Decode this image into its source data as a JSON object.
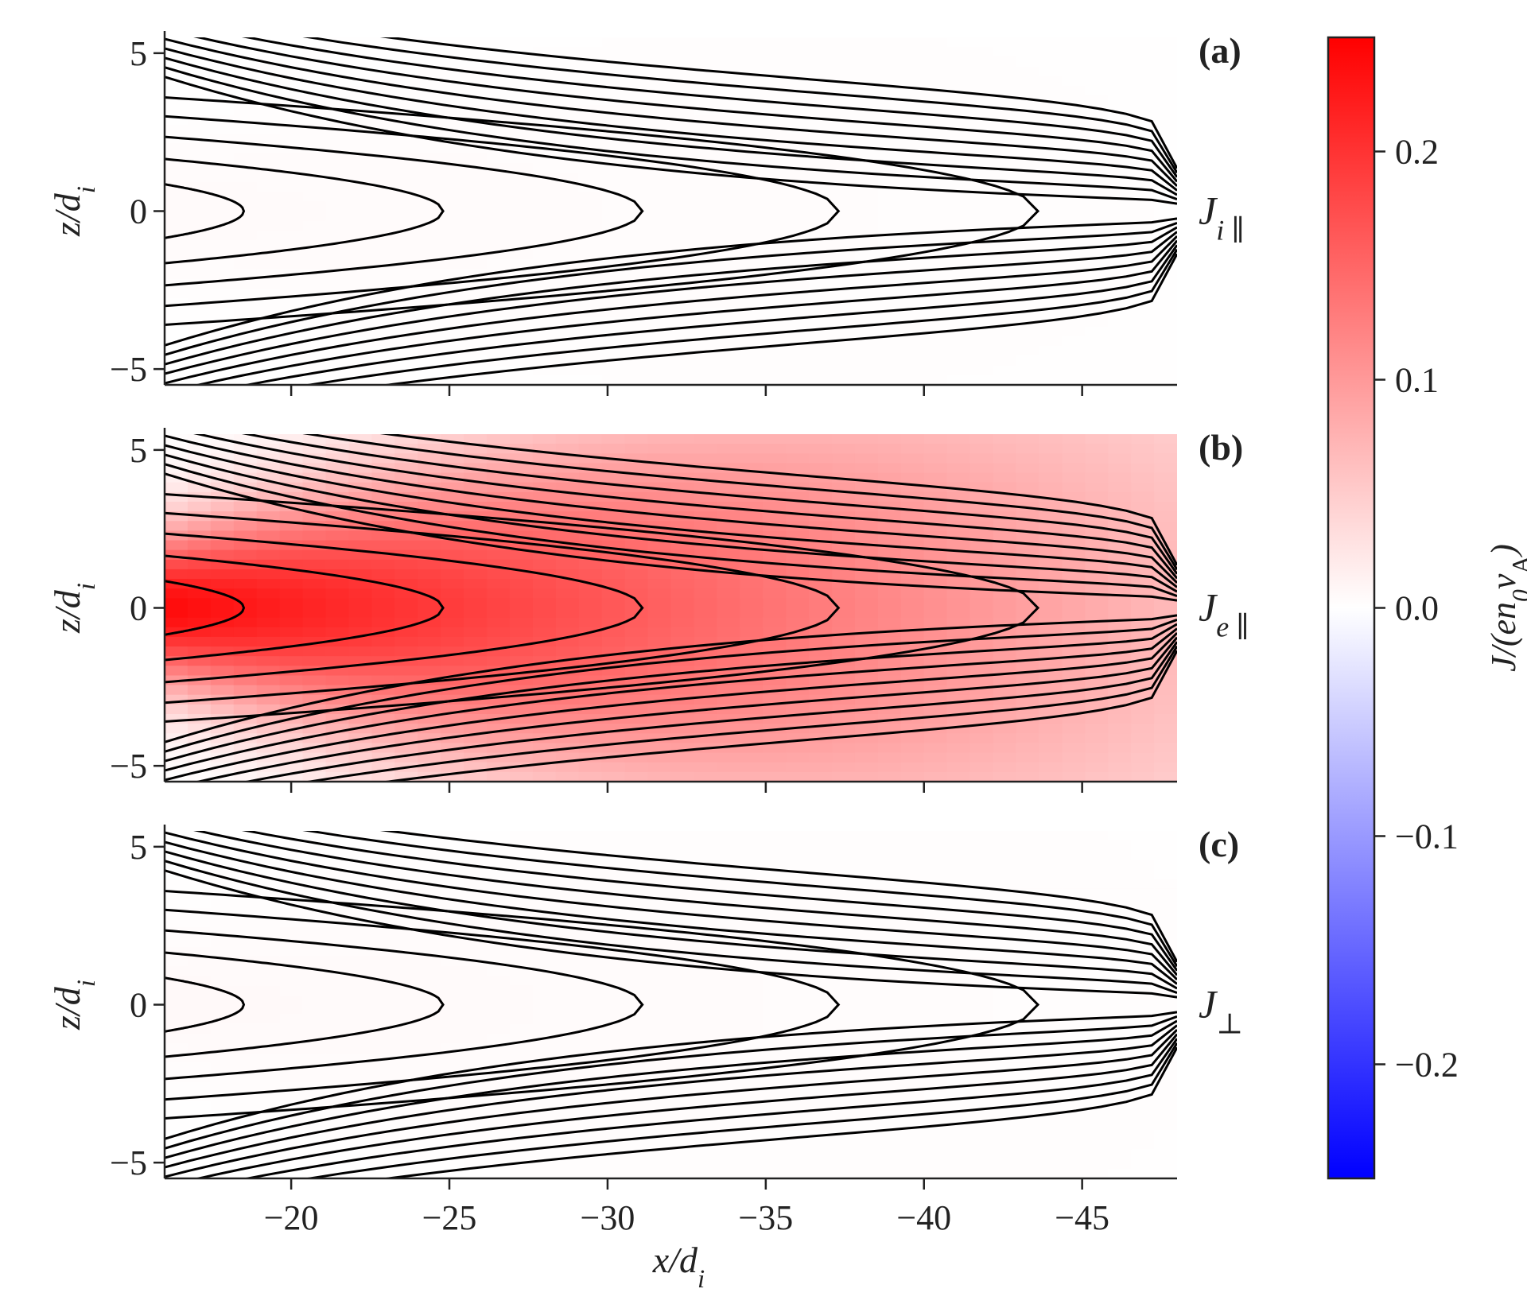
{
  "chart_data": [
    {
      "type": "heatmap",
      "panel_letter": "(a)",
      "panel_label": {
        "main": "J",
        "sub": "i ∥"
      },
      "xlabel": "",
      "ylabel": {
        "main": "z/d",
        "sub": "i"
      },
      "xlim": [
        -16,
        -48
      ],
      "ylim": [
        -5.5,
        5.5
      ],
      "xticks": [
        -20,
        -25,
        -30,
        -35,
        -40,
        -45
      ],
      "yticks": [
        5,
        0,
        -5
      ],
      "peak_value": 0.005,
      "contour_field_lines": {
        "closed_tips_x": [
          -18.5,
          -24.8,
          -31.1,
          -37.3,
          -43.6
        ],
        "closed_half_width_at_left": [
          0.85,
          1.65,
          2.35,
          3.0,
          3.6
        ]
      }
    },
    {
      "type": "heatmap",
      "panel_letter": "(b)",
      "panel_label": {
        "main": "J",
        "sub": "e ∥"
      },
      "xlabel": "",
      "ylabel": {
        "main": "z/d",
        "sub": "i"
      },
      "xlim": [
        -16,
        -48
      ],
      "ylim": [
        -5.5,
        5.5
      ],
      "xticks": [
        -20,
        -25,
        -30,
        -35,
        -40,
        -45
      ],
      "yticks": [
        5,
        0,
        -5
      ],
      "peak_value": 0.24,
      "contour_field_lines": {
        "closed_tips_x": [
          -18.5,
          -24.8,
          -31.1,
          -37.3,
          -43.6
        ],
        "closed_half_width_at_left": [
          0.85,
          1.65,
          2.35,
          3.0,
          3.6
        ]
      }
    },
    {
      "type": "heatmap",
      "panel_letter": "(c)",
      "panel_label": {
        "main": "J",
        "sub": "⊥"
      },
      "xlabel": {
        "main": "x/d",
        "sub": "i"
      },
      "ylabel": {
        "main": "z/d",
        "sub": "i"
      },
      "xlim": [
        -16,
        -48
      ],
      "ylim": [
        -5.5,
        5.5
      ],
      "xticks": [
        -20,
        -25,
        -30,
        -35,
        -40,
        -45
      ],
      "xtick_labels": [
        "−20",
        "−25",
        "−30",
        "−35",
        "−40",
        "−45"
      ],
      "yticks": [
        5,
        0,
        -5
      ],
      "ytick_labels": [
        "5",
        "0",
        "−5"
      ],
      "peak_value": 0.006,
      "contour_field_lines": {
        "closed_tips_x": [
          -18.5,
          -24.8,
          -31.1,
          -37.3,
          -43.6
        ],
        "closed_half_width_at_left": [
          0.85,
          1.65,
          2.35,
          3.0,
          3.6
        ]
      }
    }
  ],
  "colorbar": {
    "colormap": "bwr",
    "range": [
      -0.25,
      0.25
    ],
    "ticks": [
      0.2,
      0.1,
      0.0,
      -0.1,
      -0.2
    ],
    "tick_labels": [
      "0.2",
      "0.1",
      "0.0",
      "−0.1",
      "−0.2"
    ],
    "label": {
      "pre": "J/(en",
      "sub0": "0",
      "mid": "v",
      "subA": "A",
      "post": ")"
    },
    "colors": {
      "low": "#0000ff",
      "mid": "#ffffff",
      "high": "#ff0000"
    }
  }
}
